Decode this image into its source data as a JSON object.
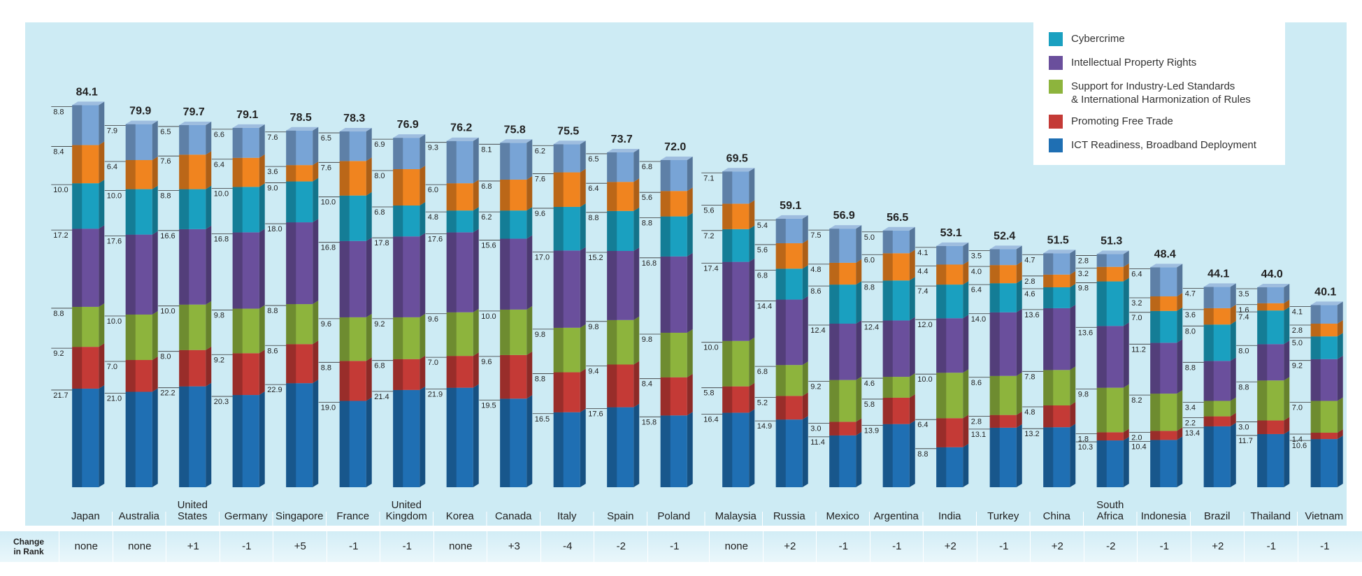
{
  "chart_data": {
    "type": "bar",
    "stacked": true,
    "categories": [
      "Japan",
      "Australia",
      "United\nStates",
      "Germany",
      "Singapore",
      "France",
      "United\nKingdom",
      "Korea",
      "Canada",
      "Italy",
      "Spain",
      "Poland",
      "Malaysia",
      "Russia",
      "Mexico",
      "Argentina",
      "India",
      "Turkey",
      "China",
      "South\nAfrica",
      "Indonesia",
      "Brazil",
      "Thailand",
      "Vietnam"
    ],
    "totals": [
      "84.1",
      "79.9",
      "79.7",
      "79.1",
      "78.5",
      "78.3",
      "76.9",
      "76.2",
      "75.8",
      "75.5",
      "73.7",
      "72.0",
      "69.5",
      "59.1",
      "56.9",
      "56.5",
      "53.1",
      "52.4",
      "51.5",
      "51.3",
      "48.4",
      "44.1",
      "44.0",
      "40.1"
    ],
    "series": [
      {
        "name": "ICT Readiness, Broadband Deployment",
        "color": "#1f6fb3",
        "values": [
          21.7,
          21.0,
          22.2,
          20.3,
          22.9,
          19.0,
          21.4,
          21.9,
          19.5,
          16.5,
          17.6,
          15.8,
          16.4,
          14.9,
          11.4,
          13.9,
          8.8,
          13.1,
          13.2,
          10.3,
          10.4,
          13.4,
          11.7,
          10.6
        ],
        "labels": [
          "21.7",
          "21.0",
          "22.2",
          "20.3",
          "22.9",
          "19.0",
          "21.4",
          "21.9",
          "19.5",
          "16.5",
          "17.6",
          "15.8",
          "16.4",
          "14.9",
          "11.4",
          "13.9",
          "8.8",
          "13.1",
          "13.2",
          "10.3",
          "10.4",
          "13.4",
          "11.7",
          "10.6"
        ]
      },
      {
        "name": "Promoting Free Trade",
        "color": "#c43a36",
        "values": [
          9.2,
          7.0,
          8.0,
          9.2,
          8.6,
          8.8,
          6.8,
          7.0,
          9.6,
          8.8,
          9.4,
          8.4,
          5.8,
          5.2,
          3.0,
          5.8,
          6.4,
          2.8,
          4.8,
          1.8,
          2.0,
          2.2,
          3.0,
          1.4
        ],
        "labels": [
          "9.2",
          "7.0",
          "8.0",
          "9.2",
          "8.6",
          "8.8",
          "6.8",
          "7.0",
          "9.6",
          "8.8",
          "9.4",
          "8.4",
          "5.8",
          "5.2",
          "3.0",
          "5.8",
          "6.4",
          "2.8",
          "4.8",
          "1.8",
          "2.0",
          "2.2",
          "3.0",
          "1.4"
        ]
      },
      {
        "name": "Support for Industry-Led Standards\n& International Harmonization of Rules",
        "color": "#8db43d",
        "values": [
          8.8,
          10.0,
          10.0,
          9.8,
          8.8,
          9.6,
          9.2,
          9.6,
          10.0,
          9.8,
          9.8,
          9.8,
          10.0,
          6.8,
          9.2,
          4.6,
          10.0,
          8.6,
          7.8,
          9.8,
          8.2,
          3.4,
          8.8,
          7.0
        ],
        "labels": [
          "8.8",
          "10.0",
          "10.0",
          "9.8",
          "8.8",
          "9.6",
          "9.2",
          "9.6",
          "10.0",
          "9.8",
          "9.8",
          "9.8",
          "10.0",
          "6.8",
          "9.2",
          "4.6",
          "10.0",
          "8.6",
          "7.8",
          "9.8",
          "8.2",
          "3.4",
          "8.8",
          "7.0"
        ]
      },
      {
        "name": "Intellectual Property Rights",
        "color": "#6a4f9c",
        "values": [
          17.2,
          17.6,
          16.6,
          16.8,
          18.0,
          16.8,
          17.8,
          17.6,
          15.6,
          17.0,
          15.2,
          16.8,
          17.4,
          14.4,
          12.4,
          12.4,
          12.0,
          14.0,
          13.6,
          13.6,
          11.2,
          8.8,
          8.0,
          9.2
        ],
        "labels": [
          "17.2",
          "17.6",
          "16.6",
          "16.8",
          "18.0",
          "16.8",
          "17.8",
          "17.6",
          "15.6",
          "17.0",
          "15.2",
          "16.8",
          "17.4",
          "14.4",
          "12.4",
          "12.4",
          "12.0",
          "14.0",
          "13.6",
          "13.6",
          "11.2",
          "8.8",
          "8.0",
          "9.2"
        ]
      },
      {
        "name": "Cybercrime",
        "color": "#1aa0c0",
        "values": [
          10.0,
          10.0,
          8.8,
          10.0,
          9.0,
          10.0,
          6.8,
          4.8,
          6.2,
          9.6,
          8.8,
          8.8,
          7.2,
          6.8,
          8.6,
          8.8,
          7.4,
          6.4,
          4.6,
          9.8,
          7.0,
          8.0,
          7.4,
          5.0
        ],
        "labels": [
          "10.0",
          "10.0",
          "8.8",
          "10.0",
          "9.0",
          "10.0",
          "6.8",
          "4.8",
          "6.2",
          "9.6",
          "8.8",
          "8.8",
          "7.2",
          "6.8",
          "8.6",
          "8.8",
          "7.4",
          "6.4",
          "4.6",
          "9.8",
          "7.0",
          "8.0",
          "7.4",
          "5.0"
        ]
      },
      {
        "name": "",
        "color": "#f0841f",
        "values": [
          8.4,
          6.4,
          7.6,
          6.4,
          3.6,
          7.6,
          8.0,
          6.0,
          6.8,
          7.6,
          6.4,
          5.6,
          5.6,
          5.6,
          4.8,
          6.0,
          4.4,
          4.0,
          2.8,
          3.2,
          3.2,
          3.6,
          1.6,
          2.8
        ],
        "labels": [
          "8.4",
          "6.4",
          "7.6",
          "6.4",
          "3.6",
          "7.6",
          "8.0",
          "6.0",
          "6.8",
          "7.6",
          "6.4",
          "5.6",
          "5.6",
          "5.6",
          "4.8",
          "6.0",
          "4.4",
          "4.0",
          "2.8",
          "3.2",
          "3.2",
          "3.6",
          "1.6",
          "2.8"
        ]
      },
      {
        "name": "",
        "color": "#78a4d6",
        "values": [
          8.8,
          7.9,
          6.5,
          6.6,
          7.6,
          6.5,
          6.9,
          9.3,
          8.1,
          6.2,
          6.5,
          6.8,
          7.1,
          5.4,
          7.5,
          5.0,
          4.1,
          3.5,
          4.7,
          2.8,
          6.4,
          4.7,
          3.5,
          4.1
        ],
        "labels": [
          "8.8",
          "7.9",
          "6.5",
          "6.6",
          "7.6",
          "6.5",
          "6.9",
          "9.3",
          "8.1",
          "6.2",
          "6.5",
          "6.8",
          "7.1",
          "5.4",
          "7.5",
          "5.0",
          "4.1",
          "3.5",
          "4.7",
          "2.8",
          "6.4",
          "4.7",
          "3.5",
          "4.1"
        ]
      }
    ],
    "ylim": [
      0,
      100
    ],
    "grid": false,
    "legend_position": "top-right"
  },
  "legend": {
    "items": [
      {
        "label": "Cybercrime",
        "color": "#1aa0c0"
      },
      {
        "label": "Intellectual Property Rights",
        "color": "#6a4f9c"
      },
      {
        "label": "Support for Industry-Led Standards\n& International Harmonization of Rules",
        "color": "#8db43d"
      },
      {
        "label": "Promoting Free Trade",
        "color": "#c43a36"
      },
      {
        "label": "ICT Readiness, Broadband Deployment",
        "color": "#1f6fb3"
      }
    ]
  },
  "rank_change": {
    "title": "Change\nin Rank",
    "values": [
      "none",
      "none",
      "+1",
      "-1",
      "+5",
      "-1",
      "-1",
      "none",
      "+3",
      "-4",
      "-2",
      "-1",
      "none",
      "+2",
      "-1",
      "-1",
      "+2",
      "-1",
      "+2",
      "-2",
      "-1",
      "+2",
      "-1",
      "-1"
    ]
  }
}
